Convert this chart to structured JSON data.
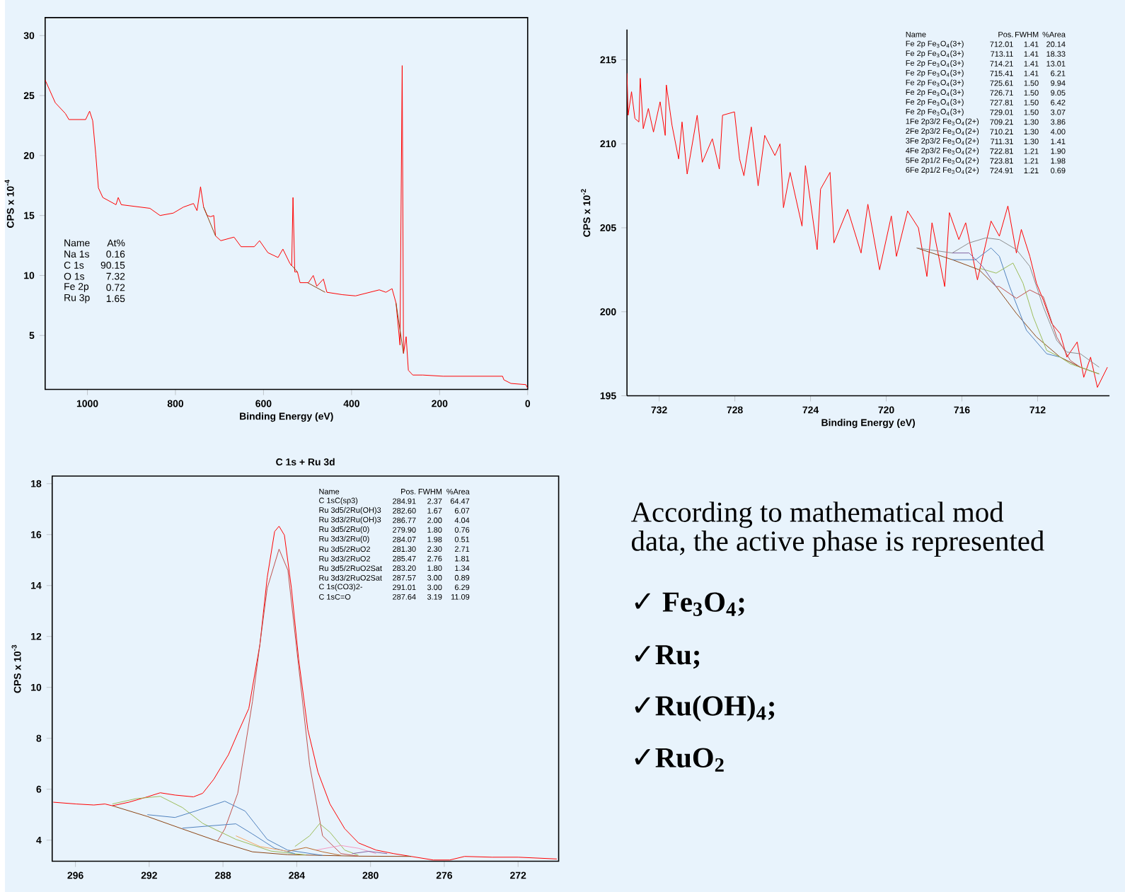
{
  "chart_data": [
    {
      "type": "line",
      "xlabel": "Binding Energy (eV)",
      "ylabel": "CPS x 10$^{-4}$",
      "xlim": [
        1096,
        0
      ],
      "ylim": [
        0.5,
        31.5
      ],
      "xticks": [
        1000,
        800,
        600,
        400,
        200,
        0
      ],
      "yticks": [
        5,
        10,
        15,
        20,
        25,
        30
      ],
      "series": [
        {
          "color": "#ff0000",
          "x": [
            1096,
            1073,
            1050,
            1042,
            1004,
            995,
            988,
            981,
            975,
            965,
            935,
            930,
            923,
            858,
            835,
            805,
            782,
            759,
            751,
            743,
            736,
            728,
            720,
            713,
            709,
            697,
            667,
            651,
            621,
            609,
            590,
            567,
            556,
            540,
            536,
            533,
            529,
            523,
            517,
            498,
            487,
            479,
            464,
            456,
            421,
            391,
            337,
            322,
            308,
            299,
            290,
            285,
            282,
            276,
            271,
            261,
            238,
            192,
            100,
            57,
            54,
            38,
            4,
            0
          ],
          "values": [
            26.3,
            24.4,
            23.5,
            23.0,
            23.0,
            23.7,
            22.9,
            20.1,
            17.3,
            16.5,
            15.9,
            16.5,
            15.9,
            15.6,
            15.0,
            15.2,
            15.7,
            16.0,
            15.4,
            17.4,
            15.7,
            15.0,
            14.9,
            15.0,
            13.3,
            12.9,
            13.2,
            12.4,
            12.4,
            12.9,
            11.9,
            11.5,
            12.2,
            11.0,
            10.8,
            16.5,
            10.3,
            10.3,
            9.4,
            9.4,
            10.0,
            9.1,
            9.7,
            8.6,
            8.4,
            8.3,
            8.8,
            8.6,
            8.9,
            7.7,
            4.2,
            27.5,
            3.5,
            4.9,
            2.1,
            1.7,
            1.7,
            1.6,
            1.6,
            1.6,
            1.3,
            1.0,
            0.9,
            0.6
          ]
        },
        {
          "color": "#8b4513",
          "x": [
            736,
            709,
            620,
            535,
            523,
            510,
            500,
            460,
            380,
            299,
            282
          ],
          "values": [
            15.7,
            13.3,
            null,
            10.8,
            10.3,
            null,
            9.4,
            8.6,
            null,
            7.7,
            3.5
          ]
        }
      ],
      "annotations": [
        "Name",
        "At%",
        "Na 1s",
        "0.16",
        "C 1s",
        "90.15",
        "O 1s",
        "7.32",
        "Fe 2p",
        "0.72",
        "Ru 3p",
        "1.65"
      ]
    },
    {
      "type": "line",
      "xlabel": "Binding Energy (eV)",
      "ylabel": "CPS x 10$^{-2}$",
      "xlim": [
        733.7,
        708.2
      ],
      "ylim": [
        195,
        216.8
      ],
      "xticks": [
        732,
        728,
        724,
        720,
        716,
        712
      ],
      "yticks": [
        195,
        200,
        205,
        210,
        215
      ],
      "series": [
        {
          "color": "#ff0000",
          "x": [
            733.7,
            733.64,
            733.46,
            733.28,
            733.07,
            733.0,
            732.84,
            732.57,
            732.3,
            731.95,
            731.68,
            731.62,
            731.32,
            730.97,
            730.79,
            730.52,
            729.99,
            729.72,
            729.19,
            728.82,
            728.65,
            728.02,
            727.75,
            727.52,
            727.13,
            726.77,
            726.42,
            725.88,
            725.61,
            725.43,
            725.08,
            724.45,
            724.27,
            723.65,
            723.47,
            722.97,
            722.76,
            722.04,
            721.33,
            720.97,
            720.35,
            719.73,
            719.46,
            718.87,
            718.3,
            717.85,
            717.58,
            716.91,
            716.66,
            716.16,
            715.8,
            715.18,
            714.46,
            714.02,
            713.57,
            713.12,
            712.86,
            712.41,
            712.06,
            711.7,
            711.25,
            710.81,
            710.45,
            709.91,
            709.56,
            709.2,
            708.84,
            708.31
          ],
          "values": [
            214.2,
            211.7,
            213.1,
            211.5,
            211.3,
            213.9,
            210.9,
            212.1,
            210.7,
            212.5,
            210.5,
            213.5,
            211.1,
            209.1,
            211.3,
            208.2,
            211.7,
            208.9,
            210.3,
            208.5,
            211.7,
            211.9,
            209.1,
            208.1,
            211.0,
            207.5,
            210.5,
            209.3,
            210.0,
            206.2,
            208.3,
            205.1,
            208.7,
            203.7,
            207.3,
            208.3,
            204.1,
            206.1,
            203.5,
            206.4,
            202.5,
            205.7,
            203.3,
            206.0,
            205.0,
            202.1,
            205.3,
            201.5,
            205.9,
            204.3,
            205.3,
            201.9,
            205.4,
            204.5,
            206.3,
            203.5,
            204.9,
            203.3,
            201.7,
            200.7,
            199.3,
            198.7,
            197.3,
            198.2,
            196.1,
            197.3,
            195.5,
            196.7
          ]
        },
        {
          "color": "#8b4513",
          "x": [
            718.39,
            716.51,
            715.09,
            714.19,
            713.12,
            712.06,
            710.81,
            709.74,
            708.75
          ],
          "values": [
            203.8,
            203.1,
            202.5,
            201.5,
            199.9,
            198.5,
            197.3,
            196.7,
            196.3
          ]
        },
        {
          "color": "#8c8c8c",
          "x": [
            718.39,
            716.51,
            715.62,
            714.73,
            714.02,
            713.12,
            712.41,
            711.7,
            710.99,
            710.45,
            709.74,
            708.75
          ],
          "values": [
            203.8,
            203.5,
            204.1,
            204.4,
            204.3,
            203.7,
            202.7,
            200.3,
            198.3,
            197.6,
            197.5,
            196.7
          ]
        },
        {
          "color": "#4f81bd",
          "x": [
            716.51,
            715.98,
            715.27,
            714.46,
            714.02,
            713.48,
            712.59,
            711.52,
            710.81
          ],
          "values": [
            203.1,
            203.1,
            203.1,
            203.8,
            203.3,
            201.5,
            198.9,
            197.5,
            197.3
          ]
        },
        {
          "color": "#9bbb59",
          "x": [
            715.09,
            714.19,
            713.3,
            712.77,
            712.23,
            711.52,
            710.81,
            710.27,
            708.75
          ],
          "values": [
            202.6,
            202.3,
            202.9,
            201.7,
            199.7,
            197.7,
            197.3,
            196.9,
            196.3
          ]
        },
        {
          "color": "#c0504d",
          "x": [
            714.19,
            714.02,
            713.12,
            712.41,
            711.7,
            710.99,
            710.27,
            709.74
          ],
          "values": [
            201.5,
            201.5,
            200.8,
            201.3,
            200.9,
            198.5,
            197.1,
            196.7
          ]
        },
        {
          "color": "#8064a2",
          "x": [
            716.51,
            715.62,
            714.91,
            714.19
          ],
          "values": [
            203.5,
            203.5,
            202.7,
            201.5
          ]
        }
      ],
      "annotations": [
        "Name",
        "Pos.",
        "FWHM",
        "%Area",
        "Fe 2p Fe$_{3}$O$_{4}$(3+)",
        "712.01",
        "1.41",
        "20.14",
        "Fe 2p Fe$_{3}$O$_{4}$(3+)",
        "713.11",
        "1.41",
        "18.33",
        "Fe 2p Fe$_{3}$O$_{4}$(3+)",
        "714.21",
        "1.41",
        "13.01",
        "Fe 2p Fe$_{3}$O$_{4}$(3+)",
        "715.41",
        "1.41",
        "6.21",
        "Fe 2p Fe$_{3}$O$_{4}$(3+)",
        "725.61",
        "1.50",
        "9.94",
        "Fe 2p Fe$_{3}$O$_{4}$(3+)",
        "726.71",
        "1.50",
        "9.05",
        "Fe 2p Fe$_{3}$O$_{4}$(3+)",
        "727.81",
        "1.50",
        "6.42",
        "Fe 2p Fe$_{3}$O$_{4}$(3+)",
        "729.01",
        "1.50",
        "3.07",
        "1Fe 2p3/2 Fe$_{3}$O$_{4}$(2+)",
        "709.21",
        "1.30",
        "3.86",
        "2Fe 2p3/2 Fe$_{3}$O$_{4}$(2+)",
        "710.21",
        "1.30",
        "4.00",
        "3Fe 2p3/2 Fe$_{3}$O$_{4}$(2+)",
        "711.31",
        "1.30",
        "1.41",
        "4Fe 2p3/2 Fe$_{3}$O$_{4}$(2+)",
        "722.81",
        "1.21",
        "1.90",
        "5Fe 2p1/2 Fe$_{3}$O$_{4}$(2+)",
        "723.81",
        "1.21",
        "1.98",
        "6Fe 2p1/2 Fe$_{3}$O$_{4}$(2+)",
        "724.91",
        "1.21",
        "0.69"
      ]
    },
    {
      "type": "line",
      "title": "C 1s + Ru 3d",
      "ylabel": "CPS x 10$^{-3}$",
      "xlim": [
        297.26,
        269.8
      ],
      "ylim": [
        3.17,
        18.3
      ],
      "xticks": [
        296,
        292,
        288,
        284,
        280,
        276,
        272
      ],
      "yticks": [
        4,
        6,
        8,
        10,
        12,
        14,
        16,
        18
      ],
      "series": [
        {
          "color": "#ff0000",
          "x": [
            297.2,
            295.96,
            295.0,
            294.4,
            294.0,
            293.1,
            292.1,
            291.4,
            290.6,
            289.6,
            289.1,
            288.5,
            287.7,
            287.2,
            286.6,
            286.0,
            285.6,
            285.2,
            284.96,
            284.67,
            284.29,
            283.9,
            283.4,
            282.85,
            282.2,
            281.4,
            280.65,
            279.7,
            278.74,
            277.8,
            276.6,
            275.7,
            274.9,
            273.4,
            272.0,
            269.9
          ],
          "values": [
            5.49,
            5.42,
            5.38,
            5.42,
            5.35,
            5.49,
            5.7,
            5.86,
            5.77,
            5.7,
            5.84,
            6.39,
            7.36,
            8.2,
            9.17,
            11.67,
            14.32,
            16.12,
            16.33,
            15.98,
            13.9,
            11.12,
            8.34,
            6.67,
            5.42,
            4.45,
            3.89,
            3.61,
            3.47,
            3.36,
            3.22,
            3.22,
            3.36,
            3.33,
            3.33,
            3.26
          ]
        },
        {
          "color": "#8b4513",
          "x": [
            294.0,
            292.1,
            290.2,
            288.3,
            286.4,
            284.5,
            282.6,
            280.65,
            277.8
          ],
          "values": [
            5.35,
            4.93,
            4.44,
            3.96,
            3.54,
            3.43,
            3.4,
            3.37,
            3.36
          ]
        },
        {
          "color": "#c0504d",
          "x": [
            288.3,
            287.9,
            287.2,
            286.4,
            285.6,
            284.96,
            284.48,
            283.9,
            283.3,
            282.6,
            281.6,
            280.65
          ],
          "values": [
            3.96,
            4.44,
            5.84,
            9.45,
            13.9,
            15.43,
            14.6,
            10.84,
            6.95,
            4.17,
            3.47,
            3.37
          ]
        },
        {
          "color": "#9bbb59",
          "x": [
            294.0,
            292.7,
            291.4,
            290.2,
            289.1,
            287.3,
            285.4,
            283.5
          ],
          "values": [
            5.42,
            5.63,
            5.72,
            5.28,
            4.66,
            4.03,
            3.57,
            3.42
          ]
        },
        {
          "color": "#4f81bd",
          "x": [
            292.1,
            290.6,
            289.5,
            287.9,
            286.8,
            285.6,
            284.5,
            282.6
          ],
          "values": [
            5.0,
            4.89,
            5.14,
            5.53,
            5.14,
            4.03,
            3.61,
            3.4
          ]
        },
        {
          "color": "#4f81bd",
          "x": [
            290.2,
            288.7,
            287.3,
            286.4,
            285.2,
            284.1
          ],
          "values": [
            4.47,
            4.56,
            4.64,
            4.24,
            3.68,
            3.47
          ]
        },
        {
          "color": "#9bbb59",
          "x": [
            284.1,
            283.3,
            282.76,
            282.2,
            281.4,
            280.65
          ],
          "values": [
            3.75,
            4.17,
            4.65,
            4.31,
            3.61,
            3.4
          ]
        },
        {
          "color": "#f49ac2",
          "x": [
            282.95,
            281.6,
            280.65,
            279.7
          ],
          "values": [
            3.61,
            3.79,
            3.68,
            3.47
          ]
        },
        {
          "color": "#b7692a",
          "x": [
            284.5,
            283.5,
            282.6,
            281.6
          ],
          "values": [
            3.56,
            3.71,
            3.54,
            3.4
          ]
        },
        {
          "color": "#8064a2",
          "x": [
            281.0,
            280.1,
            279.1
          ],
          "values": [
            3.47,
            3.56,
            3.47
          ]
        },
        {
          "color": "#f4a460",
          "x": [
            287.3,
            286.0,
            284.5
          ],
          "values": [
            4.17,
            3.75,
            3.56
          ]
        }
      ],
      "annotations": [
        "Name",
        "Pos.",
        "FWHM",
        "%Area",
        "C 1sC(sp3)",
        "284.91",
        "2.37",
        "64.47",
        "Ru 3d5/2Ru(OH)3",
        "282.60",
        "1.67",
        "6.07",
        "Ru 3d3/2Ru(OH)3",
        "286.77",
        "2.00",
        "4.04",
        "Ru 3d5/2Ru(0)",
        "279.90",
        "1.80",
        "0.76",
        "Ru 3d3/2Ru(0)",
        "284.07",
        "1.98",
        "0.51",
        "Ru 3d5/2RuO2",
        "281.30",
        "2.30",
        "2.71",
        "Ru 3d3/2RuO2",
        "285.47",
        "2.76",
        "1.81",
        "Ru 3d5/2RuO2Sat",
        "283.20",
        "1.80",
        "1.34",
        "Ru 3d3/2RuO2Sat",
        "287.57",
        "3.00",
        "0.89",
        "C 1s(CO3)2-",
        "291.01",
        "3.00",
        "6.29",
        "C 1sC=O",
        "287.64",
        "3.19",
        "11.09"
      ]
    },
    {
      "type": "other",
      "annotations": [
        "According to mathematical mod",
        "data, the active phase is represented",
        "✓ Fe$_{3}$O$_{4}$;",
        "✓Ru;",
        "✓Ru(OH)$_{4}$;",
        "✓RuO$_{2}$"
      ]
    }
  ]
}
